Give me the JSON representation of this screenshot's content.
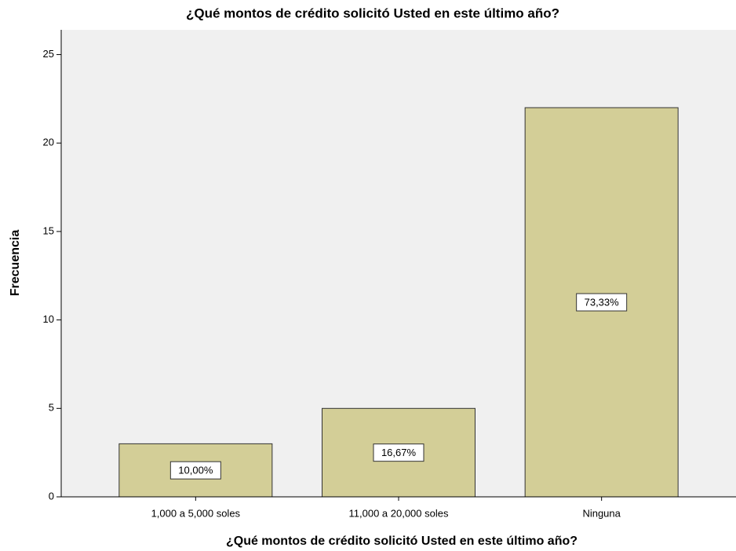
{
  "chart_data": {
    "type": "bar",
    "title": "¿Qué montos de crédito solicitó Usted en este último año?",
    "x_label": "¿Qué montos de crédito solicitó Usted en este último año?",
    "y_label": "Frecuencia",
    "categories": [
      "1,000 a 5,000 soles",
      "11,000 a 20,000 soles",
      "Ninguna"
    ],
    "values": [
      3,
      5,
      22
    ],
    "bar_labels": [
      "10,00%",
      "16,67%",
      "73,33%"
    ],
    "color": "#d3ce97",
    "ylim": [
      0,
      26.4
    ],
    "yticks": [
      0,
      5,
      10,
      15,
      20,
      25
    ],
    "grid": false
  }
}
